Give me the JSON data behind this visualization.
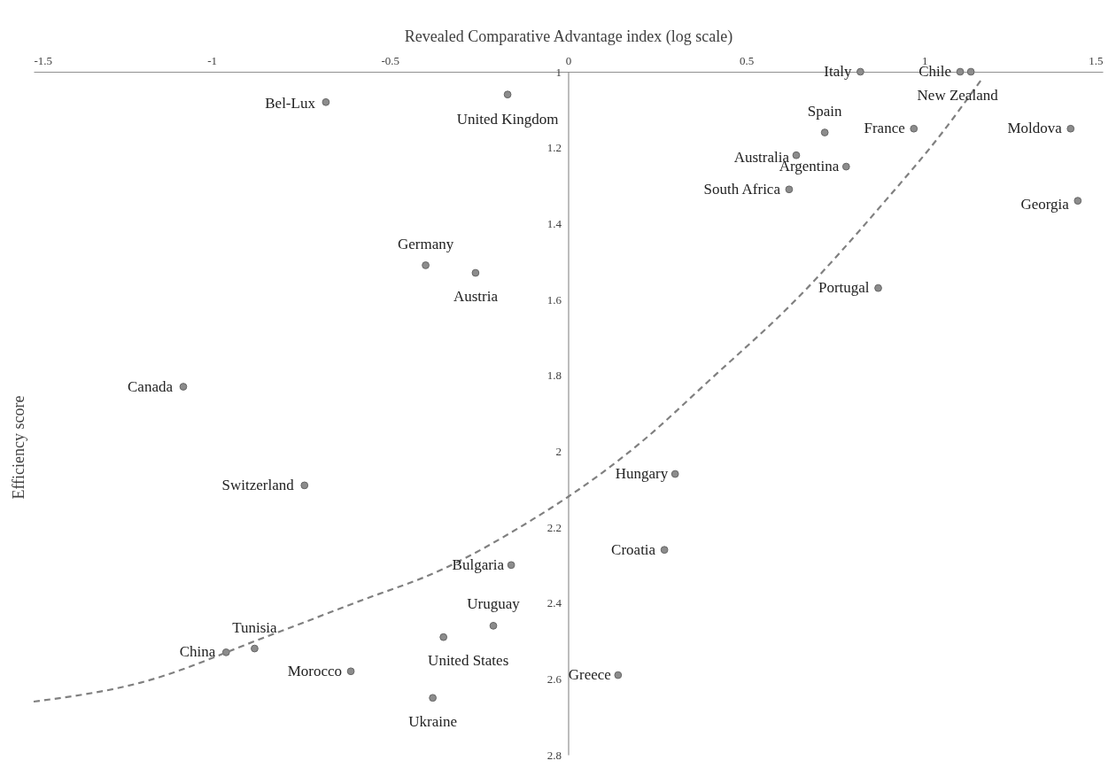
{
  "chart_data": {
    "type": "scatter",
    "xlabel": "Revealed Comparative Advantage index (log scale)",
    "ylabel": "Efficiency score",
    "xlim": [
      -1.5,
      1.5
    ],
    "xticks": [
      -1.5,
      -1,
      -0.5,
      0,
      0.5,
      1,
      1.5
    ],
    "ylim": [
      2.8,
      1
    ],
    "yticks": [
      1,
      1.2,
      1.4,
      1.6,
      1.8,
      2,
      2.2,
      2.4,
      2.6,
      2.8
    ],
    "grid": false,
    "series": [
      {
        "type": "scatter",
        "color": "#8c8c8c",
        "marker": "circle",
        "x": [
          0.82,
          1.1,
          1.13,
          -0.68,
          -0.17,
          0.72,
          0.97,
          1.41,
          0.64,
          0.78,
          0.62,
          1.43,
          -0.4,
          -0.26,
          0.87,
          -1.08,
          -0.74,
          0.3,
          0.27,
          -0.16,
          -0.21,
          -0.35,
          -0.88,
          -0.96,
          -0.61,
          0.14,
          -0.38
        ],
        "values": [
          1.0,
          1.0,
          1.0,
          1.08,
          1.06,
          1.16,
          1.15,
          1.15,
          1.22,
          1.25,
          1.31,
          1.34,
          1.51,
          1.53,
          1.57,
          1.83,
          2.09,
          2.06,
          2.26,
          2.3,
          2.46,
          2.49,
          2.52,
          2.53,
          2.58,
          2.59,
          2.65
        ]
      },
      {
        "type": "line",
        "color": "#808080",
        "line_style": "dashed",
        "marker": "none",
        "x": [
          -1.5,
          -1.2,
          -0.85,
          -0.6,
          -0.35,
          -0.1,
          0.0,
          0.2,
          0.4,
          0.64,
          0.89,
          1.05,
          1.16
        ],
        "values": [
          2.66,
          2.61,
          2.49,
          2.4,
          2.31,
          2.18,
          2.12,
          1.98,
          1.81,
          1.6,
          1.34,
          1.16,
          1.02
        ]
      }
    ],
    "annotations": [
      {
        "text": "Italy",
        "x": 0.82,
        "y": 1.0
      },
      {
        "text": "Chile",
        "x": 1.1,
        "y": 1.0
      },
      {
        "text": "New Zealand",
        "x": 1.13,
        "y": 1.0
      },
      {
        "text": "Bel-Lux",
        "x": -0.68,
        "y": 1.08
      },
      {
        "text": "United Kingdom",
        "x": -0.17,
        "y": 1.06
      },
      {
        "text": "Spain",
        "x": 0.72,
        "y": 1.16
      },
      {
        "text": "France",
        "x": 0.97,
        "y": 1.15
      },
      {
        "text": "Moldova",
        "x": 1.41,
        "y": 1.15
      },
      {
        "text": "Australia",
        "x": 0.64,
        "y": 1.22
      },
      {
        "text": "Argentina",
        "x": 0.78,
        "y": 1.25
      },
      {
        "text": "South Africa",
        "x": 0.62,
        "y": 1.31
      },
      {
        "text": "Georgia",
        "x": 1.43,
        "y": 1.34
      },
      {
        "text": "Germany",
        "x": -0.4,
        "y": 1.51
      },
      {
        "text": "Austria",
        "x": -0.26,
        "y": 1.53
      },
      {
        "text": "Portugal",
        "x": 0.87,
        "y": 1.57
      },
      {
        "text": "Canada",
        "x": -1.08,
        "y": 1.83
      },
      {
        "text": "Switzerland",
        "x": -0.74,
        "y": 2.09
      },
      {
        "text": "Hungary",
        "x": 0.3,
        "y": 2.06
      },
      {
        "text": "Croatia",
        "x": 0.27,
        "y": 2.26
      },
      {
        "text": "Bulgaria",
        "x": -0.16,
        "y": 2.3
      },
      {
        "text": "Uruguay",
        "x": -0.21,
        "y": 2.46
      },
      {
        "text": "United States",
        "x": -0.35,
        "y": 2.49
      },
      {
        "text": "Tunisia",
        "x": -0.88,
        "y": 2.52
      },
      {
        "text": "China",
        "x": -0.96,
        "y": 2.53
      },
      {
        "text": "Morocco",
        "x": -0.61,
        "y": 2.58
      },
      {
        "text": "Greece",
        "x": 0.14,
        "y": 2.59
      },
      {
        "text": "Ukraine",
        "x": -0.38,
        "y": 2.65
      }
    ]
  }
}
